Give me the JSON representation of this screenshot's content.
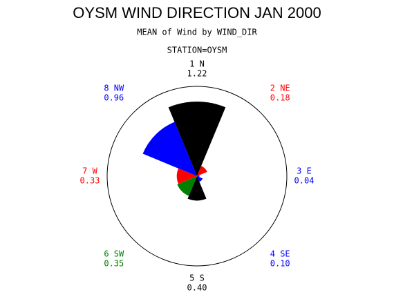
{
  "chart_data": {
    "type": "wind-rose",
    "title": "OYSM WIND DIRECTION JAN 2000",
    "subtitle": "MEAN of Wind by WIND_DIR",
    "station": "STATION=OYSM",
    "categories": [
      "1 N",
      "2 NE",
      "3 E",
      "4 SE",
      "5 S",
      "6 SW",
      "7 W",
      "8 NW"
    ],
    "values": [
      1.22,
      0.18,
      0.04,
      0.1,
      0.4,
      0.35,
      0.33,
      0.96
    ],
    "value_labels": [
      "1.22",
      "0.18",
      "0.04",
      "0.10",
      "0.40",
      "0.35",
      "0.33",
      "0.96"
    ],
    "colors": [
      "#000000",
      "#ff0000",
      "#0000ff",
      "#0000ff",
      "#000000",
      "#008000",
      "#ff0000",
      "#0000ff"
    ]
  }
}
